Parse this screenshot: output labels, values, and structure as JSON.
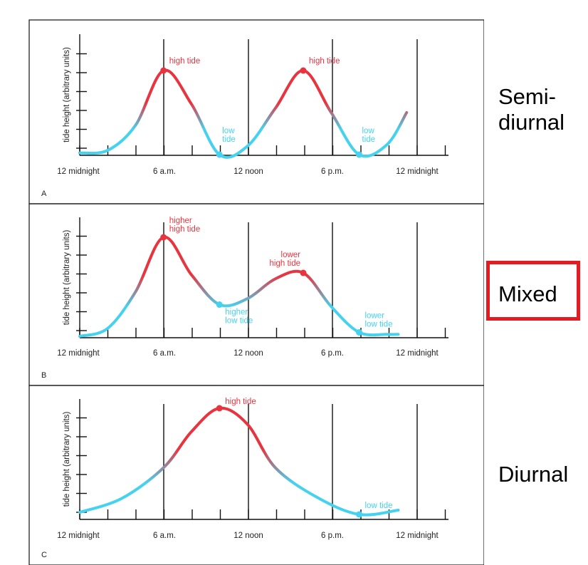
{
  "colors": {
    "high": "#e8343f",
    "low": "#45d2ef",
    "axis": "#111111",
    "box": "#e31b23"
  },
  "corner": {
    "degree": "60°"
  },
  "x_tick_labels": [
    "12 midnight",
    "6 a.m.",
    "12 noon",
    "6 p.m.",
    "12 midnight"
  ],
  "y_axis_label": "tide height (arbitrary units)",
  "side_labels": {
    "semi": "Semi-\ndiurnal",
    "mixed": "Mixed",
    "diurnal": "Diurnal"
  },
  "panels": [
    {
      "id": "A",
      "letter": "A",
      "type": "semi-diurnal",
      "curve": [
        [
          0,
          0.02
        ],
        [
          1,
          0.05
        ],
        [
          2,
          0.35
        ],
        [
          3,
          1
        ],
        [
          4,
          0.6
        ],
        [
          5,
          0
        ],
        [
          6,
          0.1
        ],
        [
          7,
          0.55
        ],
        [
          8,
          1
        ],
        [
          9,
          0.5
        ],
        [
          10,
          0
        ],
        [
          11,
          0.12
        ],
        [
          11.7,
          0.5
        ]
      ],
      "markers": [
        {
          "x": 3,
          "y": 1,
          "kind": "high",
          "label": "high tide"
        },
        {
          "x": 5,
          "y": 0,
          "kind": "low",
          "label": "low\ntide"
        },
        {
          "x": 8,
          "y": 1,
          "kind": "high",
          "label": "high tide"
        },
        {
          "x": 10,
          "y": 0,
          "kind": "low",
          "label": "low\ntide"
        }
      ]
    },
    {
      "id": "B",
      "letter": "B",
      "type": "mixed",
      "curve": [
        [
          0,
          0
        ],
        [
          1,
          0.08
        ],
        [
          2,
          0.45
        ],
        [
          3,
          1
        ],
        [
          4,
          0.62
        ],
        [
          5,
          0.32
        ],
        [
          6,
          0.38
        ],
        [
          7,
          0.58
        ],
        [
          8,
          0.64
        ],
        [
          9,
          0.3
        ],
        [
          10,
          0.04
        ],
        [
          11,
          0.02
        ],
        [
          11.4,
          0.02
        ]
      ],
      "markers": [
        {
          "x": 3,
          "y": 1,
          "kind": "high",
          "label": "higher\nhigh tide"
        },
        {
          "x": 5,
          "y": 0.32,
          "kind": "low",
          "label": "higher\nlow tide"
        },
        {
          "x": 8,
          "y": 0.64,
          "kind": "high",
          "label": "lower\nhigh tide"
        },
        {
          "x": 10,
          "y": 0.04,
          "kind": "low",
          "label": "lower\nlow tide"
        }
      ]
    },
    {
      "id": "C",
      "letter": "C",
      "type": "diurnal",
      "curve": [
        [
          0,
          0.02
        ],
        [
          1.5,
          0.15
        ],
        [
          3,
          0.44
        ],
        [
          4,
          0.78
        ],
        [
          5,
          1
        ],
        [
          6,
          0.85
        ],
        [
          7,
          0.44
        ],
        [
          8.5,
          0.16
        ],
        [
          10,
          0
        ],
        [
          11.4,
          0.04
        ]
      ],
      "markers": [
        {
          "x": 5,
          "y": 1,
          "kind": "high",
          "label": "high tide"
        },
        {
          "x": 10,
          "y": 0,
          "kind": "low",
          "label": "low tide"
        }
      ]
    }
  ]
}
